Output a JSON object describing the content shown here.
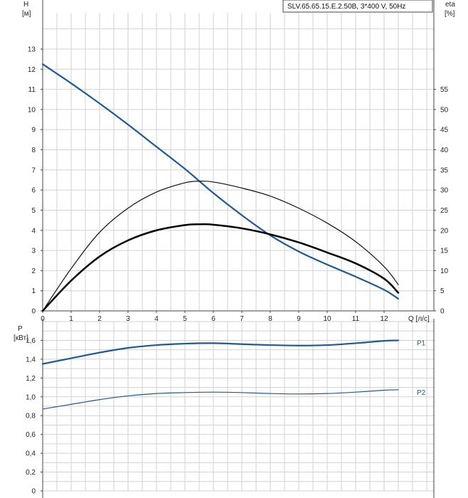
{
  "chart_data": [
    {
      "type": "line",
      "model_label": "SLV.65.65.15.E.2.50B, 3*400 V, 50Hz",
      "x_axis": {
        "ticks": [
          "0",
          "1",
          "2",
          "3",
          "4",
          "5",
          "6",
          "7",
          "8",
          "9",
          "10",
          "11",
          "12"
        ],
        "unit_label": "Q [л/с]",
        "range": [
          0,
          13.75
        ]
      },
      "y_left": {
        "title_line1": "H",
        "title_line2": "[м]",
        "ticks": [
          "0",
          "1",
          "2",
          "3",
          "4",
          "5",
          "6",
          "7",
          "8",
          "9",
          "10",
          "11",
          "12",
          "13"
        ],
        "range": [
          0,
          14.8
        ]
      },
      "y_right": {
        "title_line1": "eta",
        "title_line2": "[%]",
        "ticks": [
          "0",
          "5",
          "10",
          "15",
          "20",
          "25",
          "30",
          "35",
          "40",
          "45",
          "50",
          "55"
        ],
        "range": [
          0,
          74
        ]
      },
      "grid": true,
      "series": [
        {
          "axis": "left",
          "color": "#1f5a96",
          "x": [
            0,
            1,
            2,
            3,
            4,
            5,
            6,
            7,
            8,
            9,
            10,
            11,
            12,
            12.5
          ],
          "values": [
            12.25,
            11.3,
            10.3,
            9.25,
            8.15,
            7.05,
            5.85,
            4.75,
            3.75,
            2.95,
            2.3,
            1.7,
            1.05,
            0.6
          ]
        },
        {
          "axis": "right",
          "color": "#111111",
          "stroke_width": 1.2,
          "x": [
            0,
            1,
            2,
            3,
            4,
            5,
            5.5,
            6,
            7,
            8,
            9,
            10,
            11,
            12,
            12.5
          ],
          "values": [
            0,
            10.5,
            19.5,
            25.5,
            29.5,
            31.8,
            32.2,
            32.0,
            30.5,
            28.5,
            25.5,
            21.8,
            17.2,
            11.0,
            6.5
          ]
        },
        {
          "axis": "right",
          "color": "#000000",
          "stroke_width": 2.5,
          "x": [
            0,
            1,
            2,
            3,
            4,
            5,
            5.5,
            6,
            7,
            8,
            9,
            10,
            11,
            12,
            12.5
          ],
          "values": [
            0,
            7.5,
            13.5,
            17.5,
            20.0,
            21.3,
            21.5,
            21.4,
            20.5,
            19.0,
            17.0,
            14.5,
            11.8,
            8.0,
            4.5
          ]
        }
      ]
    },
    {
      "type": "line",
      "x_axis": {
        "range": [
          0,
          13.75
        ]
      },
      "y_left": {
        "title_line1": "P",
        "title_line2": "[кВт]",
        "ticks": [
          "0",
          "0,2",
          "0,4",
          "0,6",
          "0,8",
          "1,0",
          "1,2",
          "1,4",
          "1,6"
        ],
        "range": [
          0,
          1.8
        ]
      },
      "grid": true,
      "series": [
        {
          "name": "P1",
          "color": "#1f5a96",
          "stroke_width": 2.2,
          "x": [
            0,
            1,
            2,
            3,
            4,
            5,
            6,
            7,
            8,
            9,
            10,
            11,
            12,
            12.5
          ],
          "values": [
            1.35,
            1.41,
            1.47,
            1.52,
            1.55,
            1.565,
            1.57,
            1.56,
            1.55,
            1.545,
            1.55,
            1.57,
            1.595,
            1.6
          ]
        },
        {
          "name": "P2",
          "color": "#1f5a96",
          "stroke_width": 1.2,
          "x": [
            0,
            1,
            2,
            3,
            4,
            5,
            6,
            7,
            8,
            9,
            10,
            11,
            12,
            12.5
          ],
          "values": [
            0.87,
            0.92,
            0.97,
            1.01,
            1.035,
            1.045,
            1.05,
            1.045,
            1.035,
            1.03,
            1.035,
            1.05,
            1.07,
            1.075
          ]
        }
      ]
    }
  ]
}
